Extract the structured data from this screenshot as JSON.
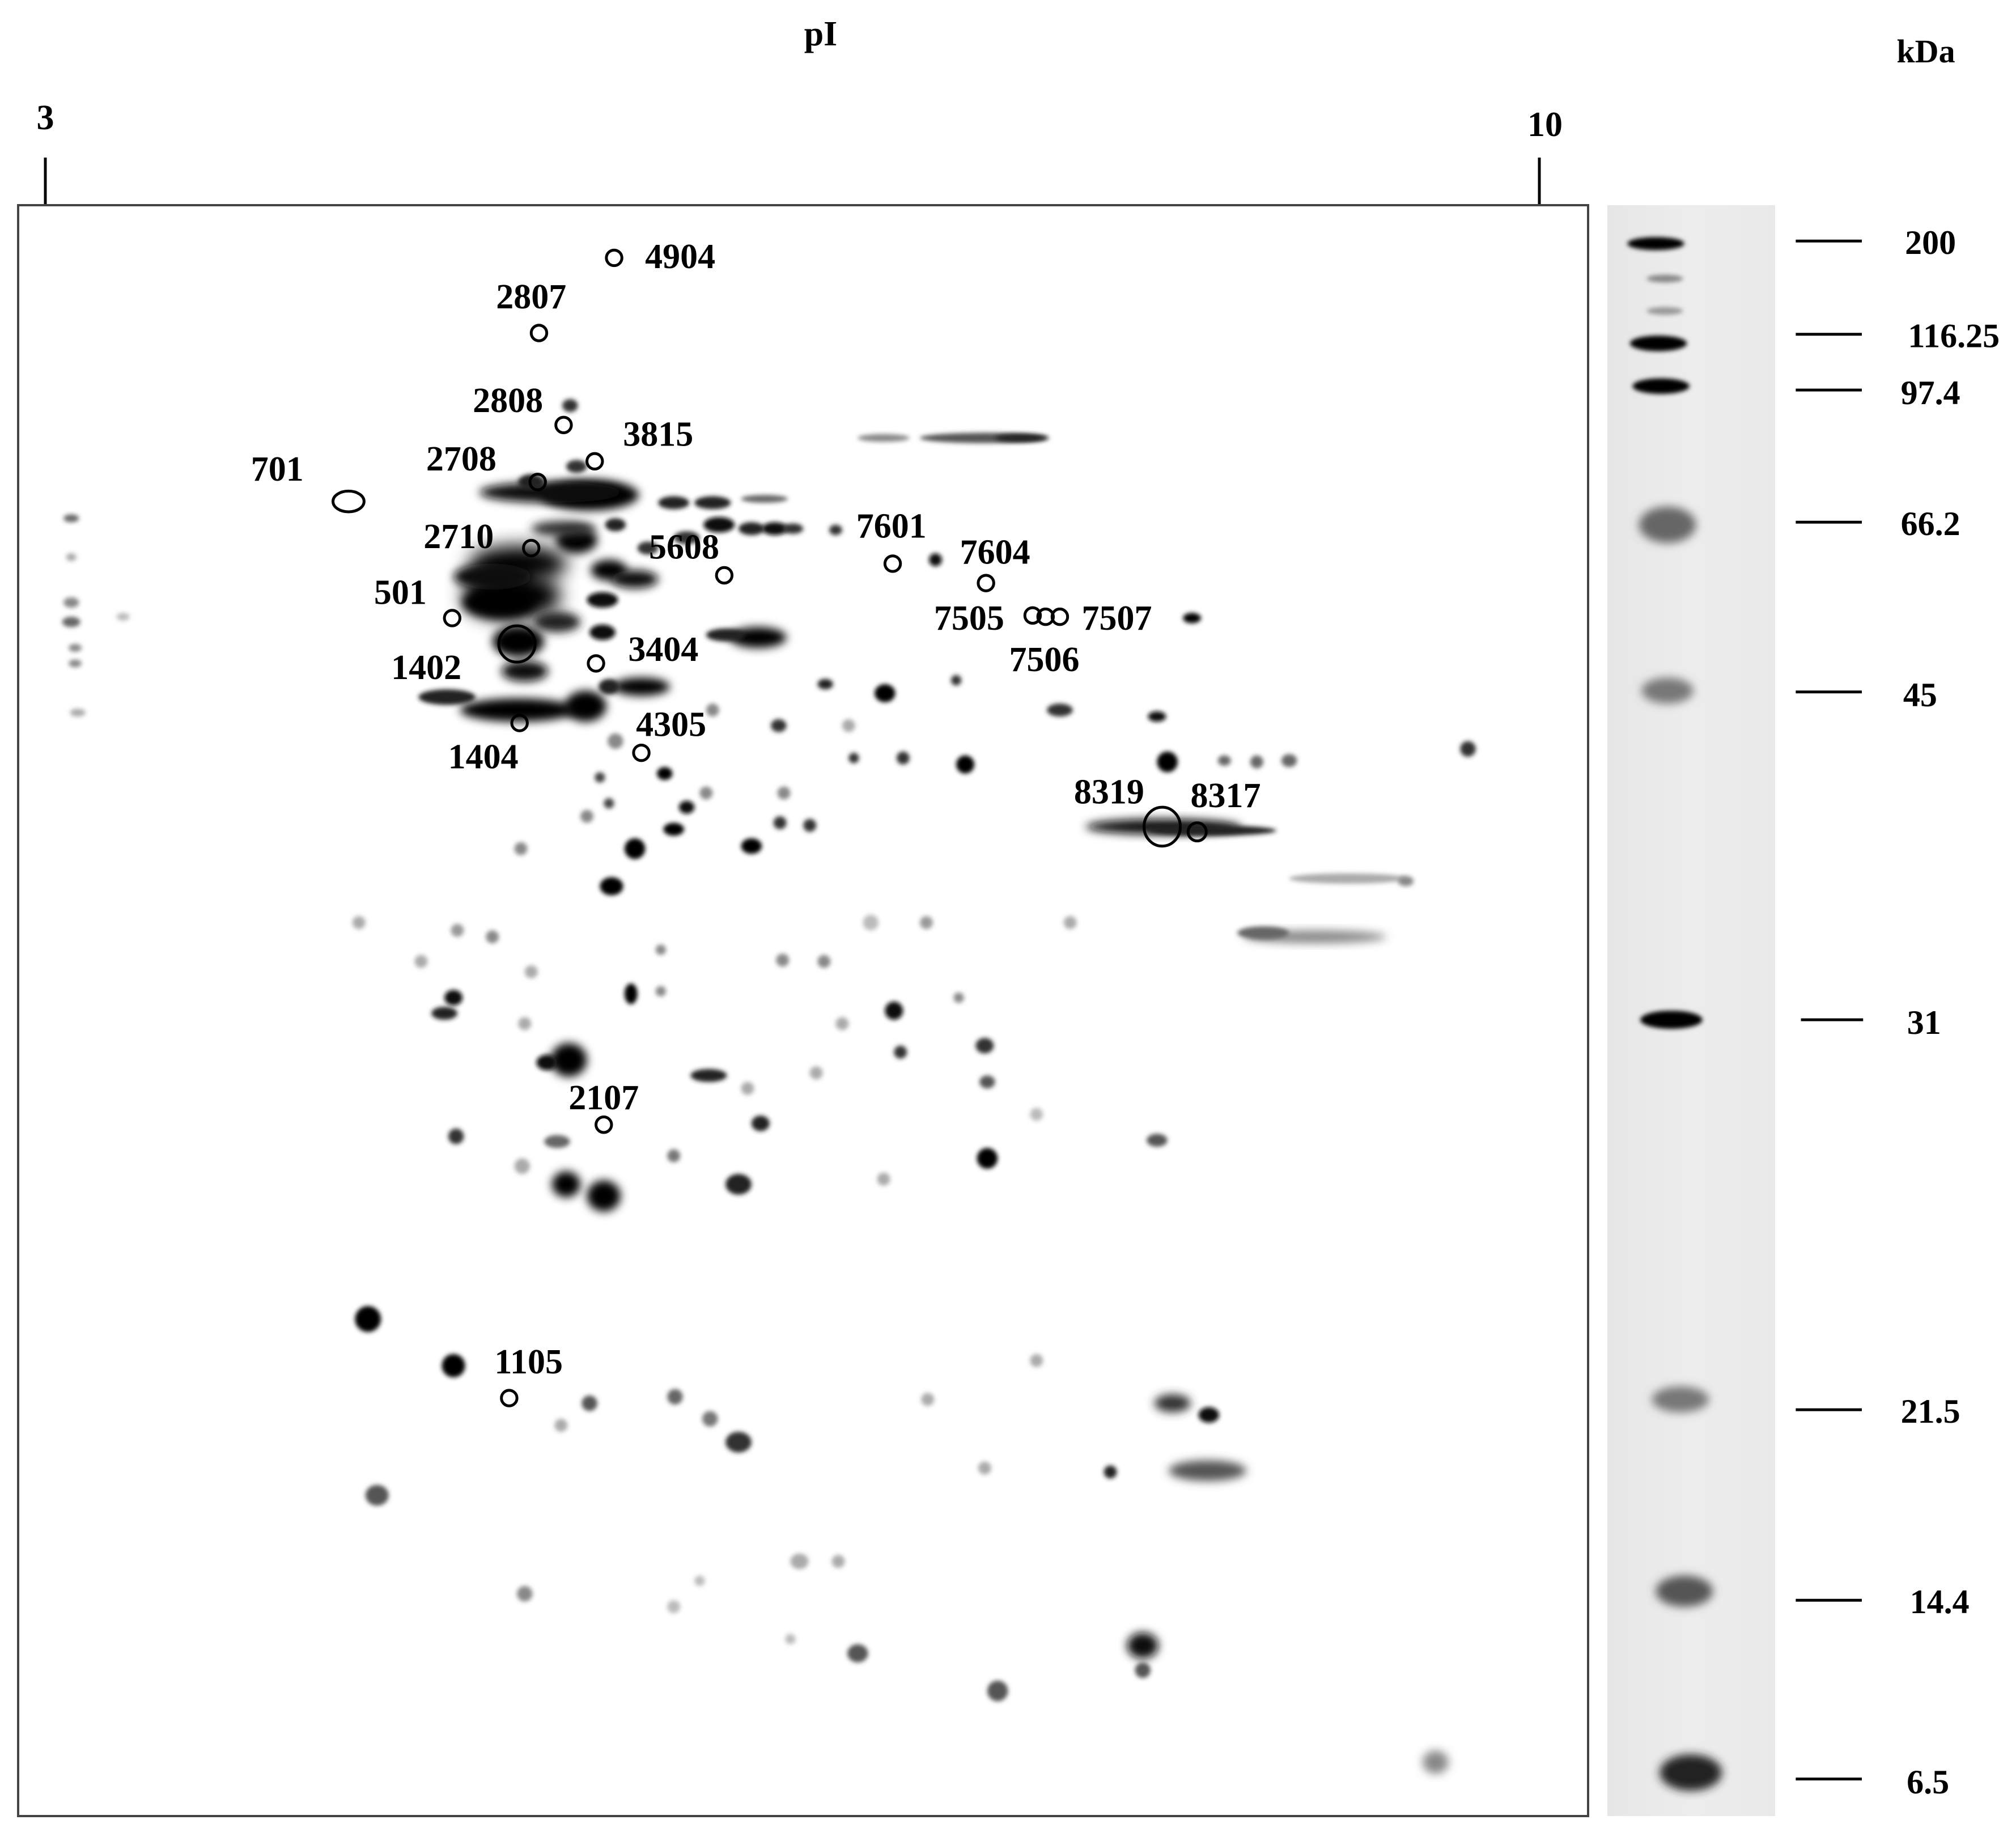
{
  "axis": {
    "top_label": "pI",
    "ph_min_label": "3",
    "ph_max_label": "10",
    "mw_label": "kDa"
  },
  "marker_labels": [
    "200",
    "116.25",
    "97.4",
    "66.2",
    "45",
    "31",
    "21.5",
    "14.4",
    "6.5"
  ],
  "spot_labels": [
    "4904",
    "2807",
    "2808",
    "3815",
    "2708",
    "701",
    "2710",
    "5608",
    "7601",
    "7604",
    "501",
    "7505",
    "7507",
    "7506",
    "1402",
    "3404",
    "4305",
    "1404",
    "8319",
    "8317",
    "2107",
    "1105"
  ]
}
